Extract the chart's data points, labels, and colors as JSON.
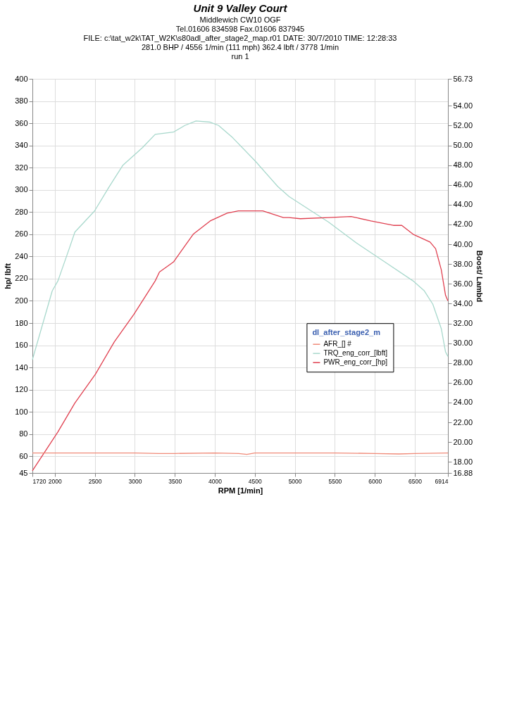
{
  "chart_data": {
    "type": "line",
    "title": "Unit 9 Valley Court",
    "subtitle": "Middlewich CW10 OGF",
    "annotations": [
      "Tel.01606 834598   Fax.01606 837945",
      "FILE: c:\\tat_w2k\\TAT_W2K\\s80adl_after_stage2_map.r01  DATE: 30/7/2010  TIME: 12:28:33",
      "281.0 BHP / 4556 1/min (111 mph)    362.4 lbft / 3778 1/min",
      "run  1"
    ],
    "xlabel": "RPM  [1/min]",
    "ylabel": "hp/ lbft",
    "y2label": "Boost/ Lambd",
    "legend_title": "dl_after_stage2_m",
    "xlim": [
      1720,
      6914
    ],
    "xticks": [
      1720,
      2000,
      2500,
      3000,
      3500,
      4000,
      4500,
      5000,
      5500,
      6000,
      6500,
      6914
    ],
    "ylim": [
      45,
      400
    ],
    "yticks": [
      45,
      60,
      80,
      100,
      120,
      140,
      160,
      180,
      200,
      220,
      240,
      260,
      280,
      300,
      320,
      340,
      360,
      380,
      400
    ],
    "y2lim": [
      16.88,
      56.73
    ],
    "y2ticks": [
      {
        "value": 16.88,
        "label": "16.88"
      },
      {
        "value": 18,
        "label": "18.00"
      },
      {
        "value": 20,
        "label": "20.00"
      },
      {
        "value": 22,
        "label": "22.00"
      },
      {
        "value": 24,
        "label": "24.00"
      },
      {
        "value": 26,
        "label": "26.00"
      },
      {
        "value": 28,
        "label": "28.00"
      },
      {
        "value": 30,
        "label": "30.00"
      },
      {
        "value": 32,
        "label": "32.00"
      },
      {
        "value": 34,
        "label": "34.00"
      },
      {
        "value": 36,
        "label": "36.00"
      },
      {
        "value": 38,
        "label": "38.00"
      },
      {
        "value": 40,
        "label": "40.00"
      },
      {
        "value": 42,
        "label": "42.00"
      },
      {
        "value": 44,
        "label": "44.00"
      },
      {
        "value": 46,
        "label": "46.00"
      },
      {
        "value": 48,
        "label": "48.00"
      },
      {
        "value": 50,
        "label": "50.00"
      },
      {
        "value": 52,
        "label": "52.00"
      },
      {
        "value": 54,
        "label": "54.00"
      },
      {
        "value": 56.73,
        "label": "56.73"
      }
    ],
    "grid": true,
    "legend": "bottom right",
    "line_style": "solid",
    "series": [
      {
        "name": "AFR_[] #",
        "color": "#f08a78",
        "axis": "y2",
        "x": [
          1720,
          2000,
          2500,
          3000,
          3300,
          3500,
          4000,
          4300,
          4400,
          4500,
          5000,
          5500,
          6000,
          6300,
          6500,
          6914
        ],
        "values": [
          18.9,
          18.9,
          18.9,
          18.9,
          18.85,
          18.85,
          18.9,
          18.85,
          18.75,
          18.9,
          18.9,
          18.9,
          18.85,
          18.8,
          18.85,
          18.9
        ]
      },
      {
        "name": "TRQ_eng_corr_[lbft]",
        "color": "#a8d8cc",
        "x": [
          1720,
          1968,
          2039,
          2180,
          2251,
          2497,
          2673,
          2849,
          3096,
          3255,
          3483,
          3625,
          3765,
          3942,
          4047,
          4223,
          4505,
          4787,
          4928,
          5421,
          5774,
          6126,
          6478,
          6619,
          6725,
          6831,
          6884,
          6914
        ],
        "values": [
          147,
          209,
          218,
          247,
          262,
          281,
          302,
          322,
          338,
          350,
          352,
          358,
          362,
          361,
          358,
          347,
          326,
          303,
          294,
          271,
          252,
          235,
          218,
          209,
          197,
          175,
          154,
          150
        ]
      },
      {
        "name": "PWR_eng_corr_[hp]",
        "color": "#e04050",
        "x": [
          1720,
          2039,
          2251,
          2508,
          2743,
          2990,
          3255,
          3308,
          3483,
          3730,
          3942,
          4153,
          4294,
          4540,
          4600,
          4857,
          4928,
          5069,
          5421,
          5703,
          5950,
          6231,
          6337,
          6478,
          6690,
          6760,
          6831,
          6884,
          6914
        ],
        "values": [
          47,
          82,
          108,
          134,
          163,
          188,
          218,
          226,
          235,
          260,
          272,
          279,
          281,
          281,
          281,
          275,
          275,
          274,
          275,
          276,
          272,
          268,
          268,
          260,
          253,
          247,
          228,
          205,
          200
        ]
      }
    ]
  }
}
